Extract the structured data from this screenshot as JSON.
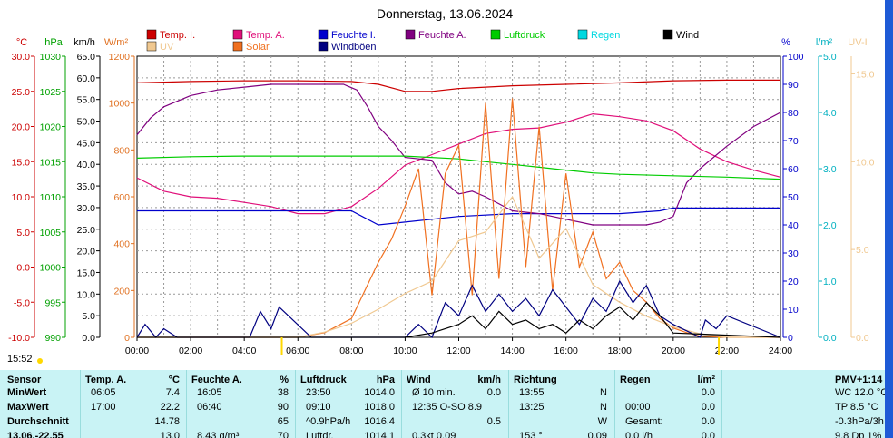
{
  "chart_data": {
    "type": "line",
    "title": "Donnerstag, 13.06.2024",
    "x_axis": {
      "ticks": [
        "00:00",
        "02:00",
        "04:00",
        "06:00",
        "08:00",
        "10:00",
        "12:00",
        "14:00",
        "16:00",
        "18:00",
        "20:00",
        "22:00",
        "24:00"
      ],
      "range_hours": [
        0,
        24
      ]
    },
    "left_axes": [
      {
        "label": "°C",
        "color": "#cc0000",
        "range": [
          -10,
          30
        ],
        "ticks": [
          "30.0",
          "25.0",
          "20.0",
          "15.0",
          "10.0",
          "5.0",
          "0.0",
          "-5.0",
          "-10.0"
        ]
      },
      {
        "label": "hPa",
        "color": "#00a000",
        "range": [
          990,
          1030
        ],
        "ticks": [
          "1030",
          "1025",
          "1020",
          "1015",
          "1010",
          "1005",
          "1000",
          "995",
          "990"
        ]
      },
      {
        "label": "km/h",
        "color": "#000000",
        "range": [
          0,
          65
        ],
        "ticks": [
          "65.0",
          "60.0",
          "55.0",
          "50.0",
          "45.0",
          "40.0",
          "35.0",
          "30.0",
          "25.0",
          "20.0",
          "15.0",
          "10.0",
          "5.0",
          "0.0"
        ]
      },
      {
        "label": "W/m²",
        "color": "#e07020",
        "range": [
          0,
          1200
        ],
        "ticks": [
          "1200",
          "1000",
          "800",
          "600",
          "400",
          "200",
          "0"
        ]
      }
    ],
    "right_axes": [
      {
        "label": "%",
        "color": "#0000cc",
        "range": [
          0,
          100
        ],
        "ticks": [
          "100",
          "90",
          "80",
          "70",
          "60",
          "50",
          "40",
          "30",
          "20",
          "10",
          "0"
        ]
      },
      {
        "label": "l/m²",
        "color": "#00b0c0",
        "range": [
          0,
          5
        ],
        "ticks": [
          "5.0",
          "4.0",
          "3.0",
          "2.0",
          "1.0",
          "0.0"
        ]
      },
      {
        "label": "UV-I",
        "color": "#f0c890",
        "range": [
          0,
          16
        ],
        "ticks": [
          "15.0",
          "10.0",
          "5.0",
          "0.0"
        ]
      }
    ],
    "legend": [
      {
        "name": "Temp. I.",
        "color": "#cc0000"
      },
      {
        "name": "Temp. A.",
        "color": "#e0107a"
      },
      {
        "name": "Feuchte I.",
        "color": "#0000cc"
      },
      {
        "name": "Feuchte A.",
        "color": "#800080"
      },
      {
        "name": "Luftdruck",
        "color": "#00cc00"
      },
      {
        "name": "Regen",
        "color": "#00d8e0"
      },
      {
        "name": "Wind",
        "color": "#000000"
      },
      {
        "name": "UV",
        "color": "#f0c890"
      },
      {
        "name": "Solar",
        "color": "#f07020"
      },
      {
        "name": "Windböen",
        "color": "#000080"
      }
    ],
    "series": [
      {
        "name": "Temp. I.",
        "axis": "°C",
        "x": [
          0,
          2,
          4,
          6,
          8,
          9,
          10,
          11,
          12,
          14,
          16,
          18,
          20,
          22,
          24
        ],
        "y": [
          26.2,
          26.4,
          26.5,
          26.5,
          26.4,
          26.0,
          25.0,
          25.0,
          25.4,
          25.8,
          26.0,
          26.2,
          26.5,
          26.6,
          26.6
        ]
      },
      {
        "name": "Temp. A.",
        "axis": "°C",
        "x": [
          0,
          1,
          2,
          3,
          4,
          5,
          6,
          7,
          8,
          9,
          10,
          11,
          12,
          13,
          14,
          15,
          16,
          17,
          18,
          19,
          20,
          21,
          22,
          23,
          24
        ],
        "y": [
          12.7,
          10.8,
          10.0,
          9.8,
          9.2,
          8.6,
          7.6,
          7.6,
          8.6,
          11.2,
          14.5,
          16.0,
          17.5,
          19.0,
          19.6,
          19.8,
          20.6,
          21.8,
          21.4,
          20.8,
          19.4,
          16.8,
          15.0,
          13.8,
          12.8
        ]
      },
      {
        "name": "Feuchte I.",
        "axis": "%",
        "x": [
          0,
          2,
          4,
          6,
          8,
          9,
          10,
          12,
          14,
          16,
          18,
          19.5,
          20,
          22,
          24
        ],
        "y": [
          45,
          45,
          45,
          45,
          45,
          40,
          41,
          43,
          44,
          44,
          44,
          45,
          46,
          46,
          46
        ]
      },
      {
        "name": "Feuchte A.",
        "axis": "%",
        "x": [
          0,
          0.5,
          1,
          2,
          3,
          4,
          5,
          6,
          7,
          7.7,
          8.2,
          8.6,
          9,
          9.5,
          10,
          11,
          11.5,
          12,
          12.5,
          13,
          14,
          15,
          16,
          17,
          18,
          19,
          19.5,
          20,
          20.5,
          21,
          22,
          23,
          24
        ],
        "y": [
          72,
          78,
          82,
          86,
          88,
          89,
          90,
          90,
          90,
          90,
          88,
          82,
          75,
          70,
          64,
          63,
          55,
          51,
          52,
          50,
          45,
          44,
          42,
          40,
          40,
          40,
          41,
          43,
          55,
          60,
          68,
          75,
          80
        ]
      },
      {
        "name": "Luftdruck",
        "axis": "hPa",
        "x": [
          0,
          2,
          4,
          6,
          8,
          10,
          12,
          13,
          14,
          15,
          16,
          17,
          18,
          20,
          22,
          24
        ],
        "y": [
          1015.5,
          1015.7,
          1015.8,
          1015.8,
          1015.8,
          1015.8,
          1015.4,
          1015.0,
          1014.6,
          1014.2,
          1013.8,
          1013.4,
          1013.2,
          1013.0,
          1012.8,
          1012.5
        ]
      },
      {
        "name": "Solar",
        "axis": "W/m²",
        "x": [
          0,
          6,
          7,
          8,
          8.5,
          9,
          9.5,
          10,
          10.5,
          11,
          11.5,
          12,
          12.5,
          13,
          13.5,
          14,
          14.5,
          15,
          15.5,
          16,
          16.5,
          17,
          17.5,
          18,
          18.5,
          19,
          19.5,
          20,
          20.5,
          21,
          22,
          24
        ],
        "y": [
          0,
          0,
          20,
          80,
          200,
          320,
          420,
          560,
          720,
          180,
          700,
          820,
          180,
          1000,
          250,
          1020,
          300,
          900,
          200,
          700,
          300,
          450,
          250,
          320,
          200,
          150,
          80,
          40,
          20,
          5,
          0,
          0
        ]
      },
      {
        "name": "UV",
        "axis": "UV-I",
        "x": [
          0,
          6,
          7,
          8,
          9,
          10,
          11,
          12,
          13,
          14,
          15,
          16,
          17,
          18,
          19,
          20,
          21,
          22,
          24
        ],
        "y": [
          0,
          0,
          0.3,
          0.8,
          1.6,
          2.5,
          3.2,
          5.5,
          6.0,
          8.0,
          4.5,
          6.2,
          3.0,
          2.0,
          1.2,
          0.6,
          0.2,
          0,
          0
        ]
      },
      {
        "name": "Windböen",
        "axis": "km/h",
        "x": [
          0,
          0.3,
          0.7,
          1,
          1.5,
          4.2,
          4.6,
          5.0,
          5.3,
          6.5,
          7,
          9,
          10,
          10.5,
          11,
          11.5,
          12,
          12.5,
          13,
          13.5,
          14,
          14.5,
          15,
          15.5,
          16,
          16.5,
          17,
          17.5,
          18,
          18.5,
          19,
          19.5,
          20,
          21,
          21.2,
          21.6,
          22,
          24
        ],
        "y": [
          0,
          3,
          0,
          2,
          0,
          0,
          6,
          2,
          7,
          0,
          0,
          0,
          0,
          3,
          0,
          8,
          5,
          12,
          6,
          10,
          6,
          9,
          5,
          11,
          7,
          3,
          9,
          6,
          13,
          8,
          12,
          5,
          3,
          0,
          4,
          2,
          5,
          0
        ]
      },
      {
        "name": "Wind",
        "axis": "km/h",
        "x": [
          0,
          10,
          11,
          12,
          12.5,
          13,
          13.5,
          14,
          14.5,
          15,
          15.5,
          16,
          16.5,
          17,
          17.5,
          18,
          18.5,
          19,
          19.5,
          20,
          24
        ],
        "y": [
          0,
          0,
          1,
          3,
          5,
          2,
          6,
          3,
          4,
          2,
          3,
          1,
          4,
          2,
          5,
          7,
          4,
          8,
          5,
          1,
          0
        ]
      }
    ]
  },
  "time_label": "15:52",
  "table": {
    "sensor": {
      "header": "Sensor",
      "rows": [
        "MinWert",
        "MaxWert",
        "Durchschnitt",
        "13.06.-22.55"
      ]
    },
    "temp": {
      "header": "Temp. A.",
      "unit": "°C",
      "rows": [
        [
          "06:05",
          "7.4"
        ],
        [
          "17:00",
          "22.2"
        ],
        [
          "",
          "14.78"
        ],
        [
          "",
          "13.0"
        ]
      ]
    },
    "feuchte": {
      "header": "Feuchte A.",
      "unit": "%",
      "rows": [
        [
          "16:05",
          "38"
        ],
        [
          "06:40",
          "90"
        ],
        [
          "",
          "65"
        ],
        [
          "8.43 g/m³",
          "70"
        ]
      ]
    },
    "luftdruck": {
      "header": "Luftdruck",
      "unit": "hPa",
      "rows": [
        [
          "23:50",
          "1014.0"
        ],
        [
          "09:10",
          "1018.0"
        ],
        [
          "^0.9hPa/h",
          "1016.4"
        ],
        [
          "Luftdr.",
          "1014.1"
        ]
      ]
    },
    "wind": {
      "header": "Wind",
      "unit": "km/h",
      "rows": [
        [
          "Ø 10 min.",
          "0.0"
        ],
        [
          "12:35   O-SO 8.9",
          ""
        ],
        [
          "",
          "0.5"
        ],
        [
          "0.3kt 0.09",
          ""
        ]
      ]
    },
    "richtung": {
      "header": "Richtung",
      "rows": [
        [
          "13:55",
          "N"
        ],
        [
          "13:25",
          "N"
        ],
        [
          "",
          "W"
        ],
        [
          "153 °",
          "0.09"
        ]
      ]
    },
    "regen": {
      "header": "Regen",
      "unit": "l/m²",
      "rows": [
        [
          "",
          "0.0"
        ],
        [
          "00:00",
          "0.0"
        ],
        [
          "Gesamt:",
          "0.0"
        ],
        [
          "0.0 l/h",
          "0.0"
        ]
      ]
    },
    "pmv": {
      "header": "PMV+1:14",
      "rows": [
        "WC 12.0 °C",
        "TP 8.5 °C",
        "-0.3hPa/3h",
        "9.8 Dp 1%"
      ]
    }
  }
}
